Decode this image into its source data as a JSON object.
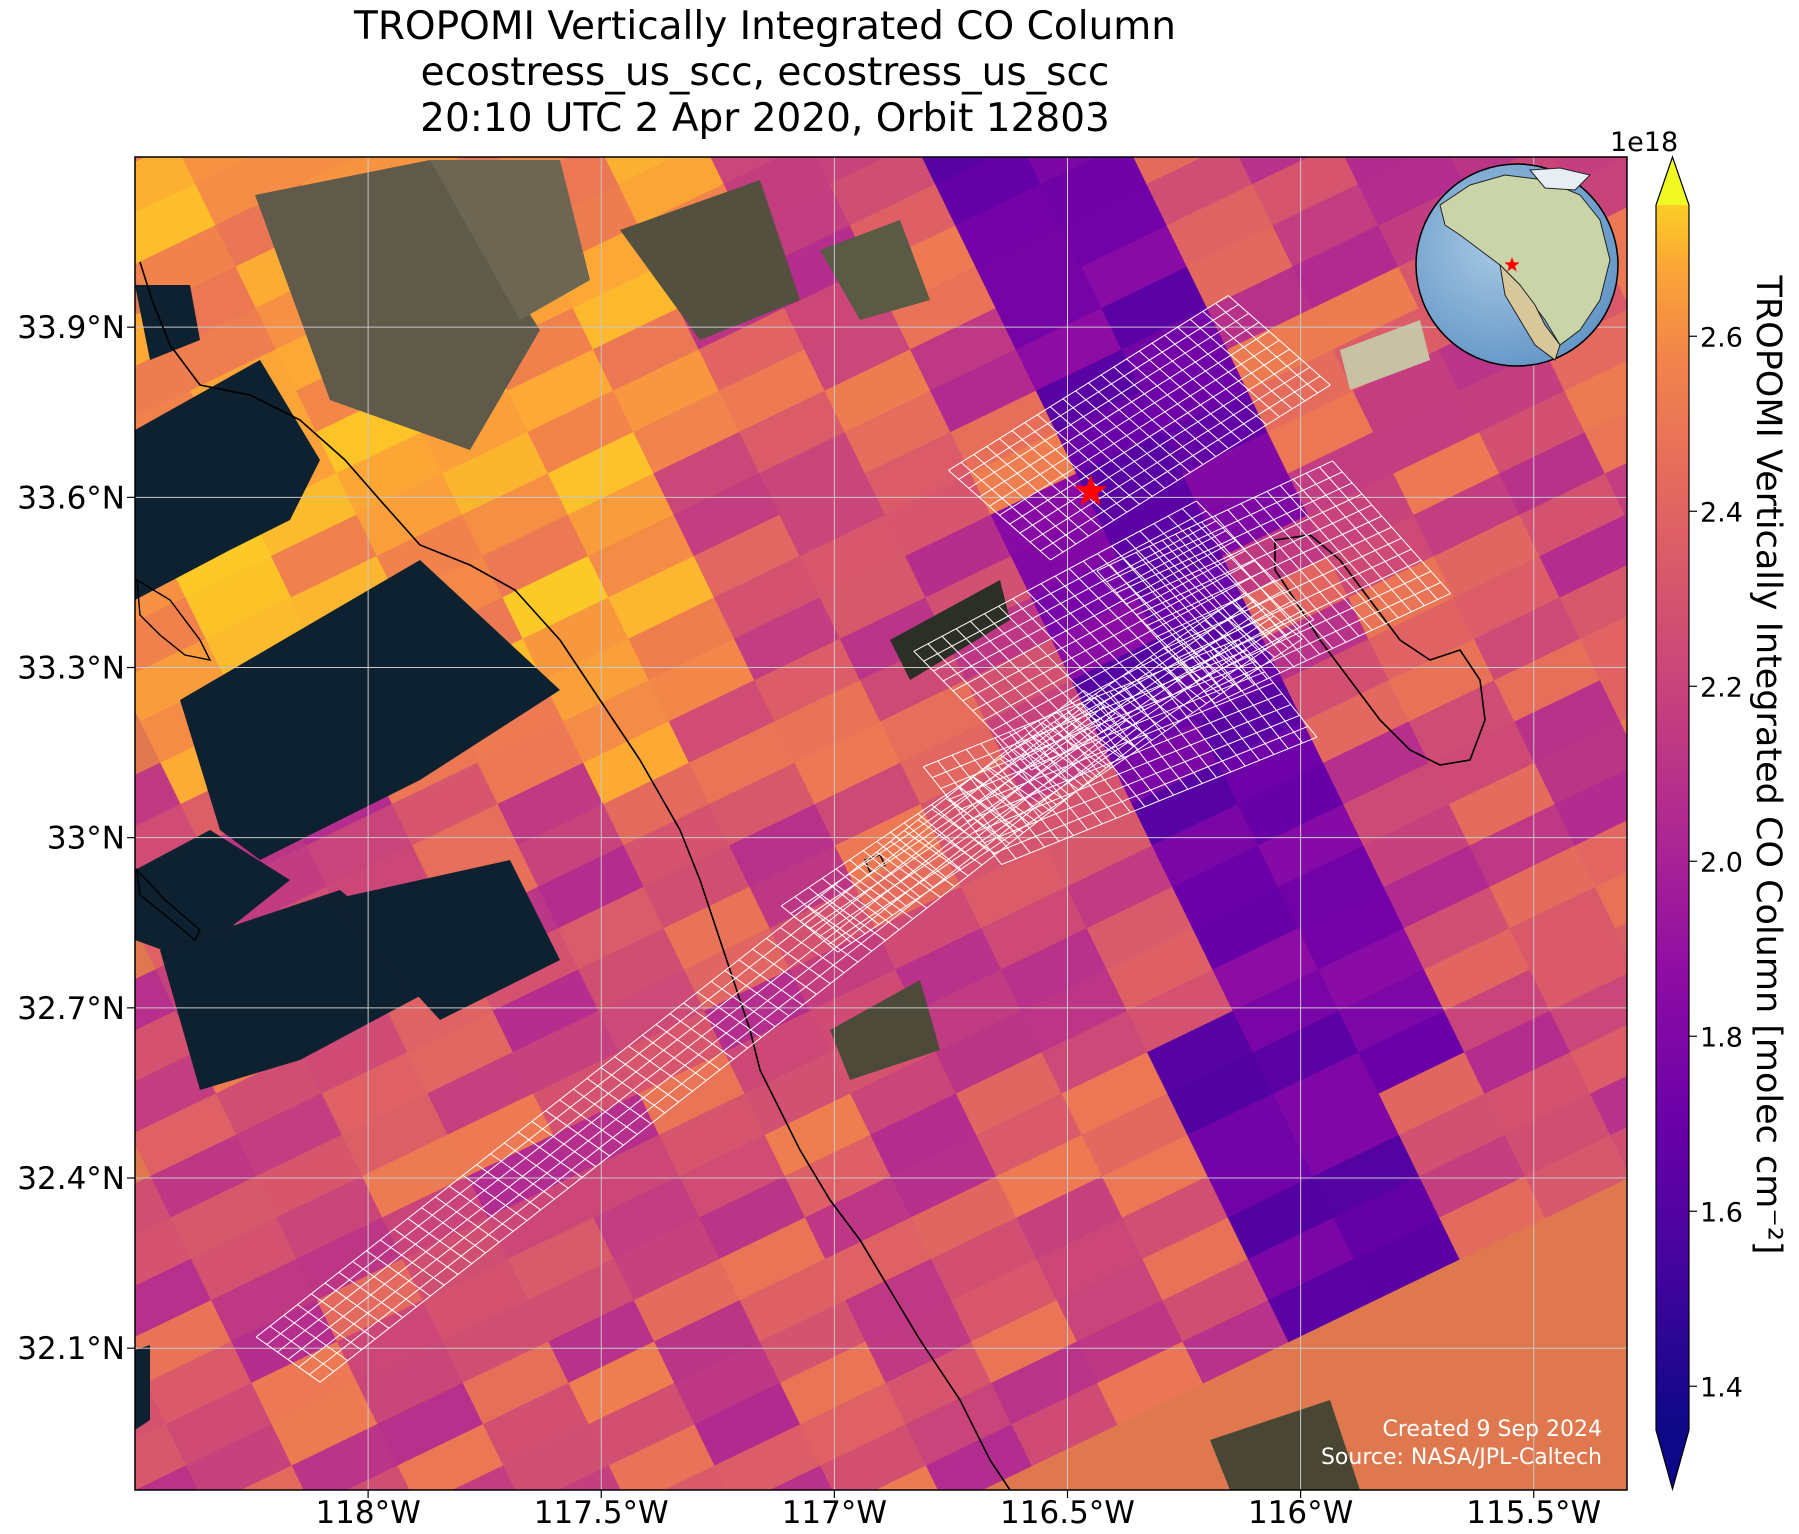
{
  "title": {
    "line1": "TROPOMI Vertically Integrated CO Column",
    "line2": "ecostress_us_scc, ecostress_us_scc",
    "line3": "20:10 UTC 2 Apr 2020, Orbit 12803"
  },
  "map": {
    "lon_range": [
      -118.5,
      -115.3
    ],
    "lat_range": [
      31.85,
      34.2
    ],
    "x_ticks": [
      "118°W",
      "117.5°W",
      "117°W",
      "116.5°W",
      "116°W",
      "115.5°W"
    ],
    "x_tick_values": [
      -118.0,
      -117.5,
      -117.0,
      -116.5,
      -116.0,
      -115.5
    ],
    "y_ticks": [
      "33.9°N",
      "33.6°N",
      "33.3°N",
      "33°N",
      "32.7°N",
      "32.4°N",
      "32.1°N"
    ],
    "y_tick_values": [
      33.9,
      33.6,
      33.3,
      33.0,
      32.7,
      32.4,
      32.1
    ],
    "target_marker": {
      "lon": -116.45,
      "lat": 33.61,
      "color": "#ff0000",
      "shape": "star"
    },
    "grid": true,
    "basemap": "satellite imagery",
    "footprint_outline_color": "#ffffff"
  },
  "colorbar": {
    "label": "TROPOMI Vertically Integrated CO Column [molec cm⁻²]",
    "exponent": "1e18",
    "ticks": [
      "1.4",
      "1.6",
      "1.8",
      "2.0",
      "2.2",
      "2.4",
      "2.6"
    ],
    "tick_values": [
      1.4,
      1.6,
      1.8,
      2.0,
      2.2,
      2.4,
      2.6
    ],
    "range": [
      1.35,
      2.75
    ],
    "colormap": "plasma",
    "extend": "both"
  },
  "inset_globe": {
    "marker_color": "#ff0000",
    "region": "North America"
  },
  "credits": {
    "created": "Created 9 Sep 2024",
    "source": "Source: NASA/JPL-Caltech"
  }
}
